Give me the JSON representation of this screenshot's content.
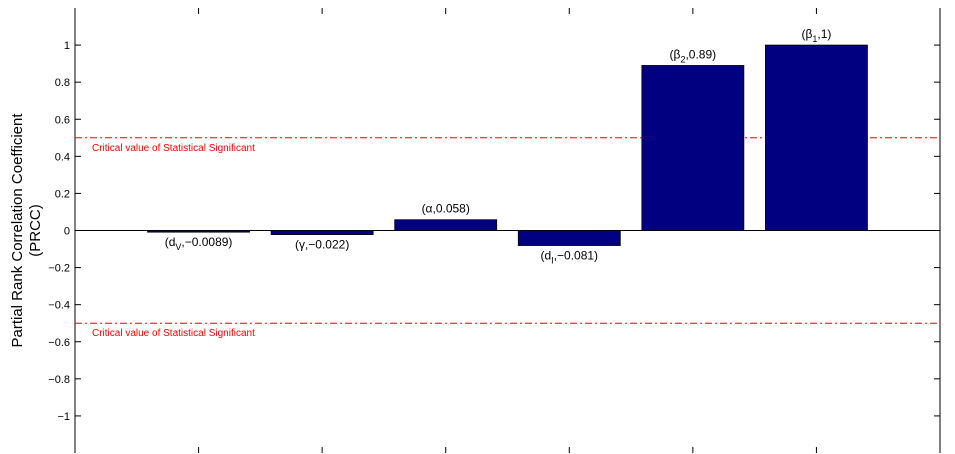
{
  "chart_data": {
    "type": "bar",
    "title": "",
    "xlabel": "",
    "ylabel_lines": [
      "Partial Rank Correlation Coefficient",
      "(PRCC)"
    ],
    "ylim": [
      -1.2,
      1.2
    ],
    "yticks": [
      -1,
      -0.8,
      -0.6,
      -0.4,
      -0.2,
      0,
      0.2,
      0.4,
      0.6,
      0.8,
      1
    ],
    "ytick_labels": [
      "−1",
      "−0.8",
      "−0.6",
      "−0.4",
      "−0.2",
      "0",
      "0.2",
      "0.4",
      "0.6",
      "0.8",
      "1"
    ],
    "grid": false,
    "bar_color": "#000080",
    "bars": [
      {
        "value": -0.0089,
        "label": {
          "pre": "(d",
          "sub": "V",
          "post": ",−0.0089)"
        }
      },
      {
        "value": -0.022,
        "label": {
          "pre": "(γ,−0.022)",
          "sub": "",
          "post": ""
        }
      },
      {
        "value": 0.058,
        "label": {
          "pre": "(α,0.058)",
          "sub": "",
          "post": ""
        }
      },
      {
        "value": -0.081,
        "label": {
          "pre": "(d",
          "sub": "I",
          "post": ",−0.081)"
        }
      },
      {
        "value": 0.89,
        "label": {
          "pre": "(β",
          "sub": "2",
          "post": ",0.89)"
        }
      },
      {
        "value": 1,
        "label": {
          "pre": "(β",
          "sub": "1",
          "post": ",1)"
        }
      }
    ],
    "reference_lines": [
      {
        "value": 0.5,
        "label": "Critical value of Statistical Significant",
        "color": "#ff0000"
      },
      {
        "value": -0.5,
        "label": "Critical value of Statistical Significant",
        "color": "#ff0000"
      }
    ]
  }
}
